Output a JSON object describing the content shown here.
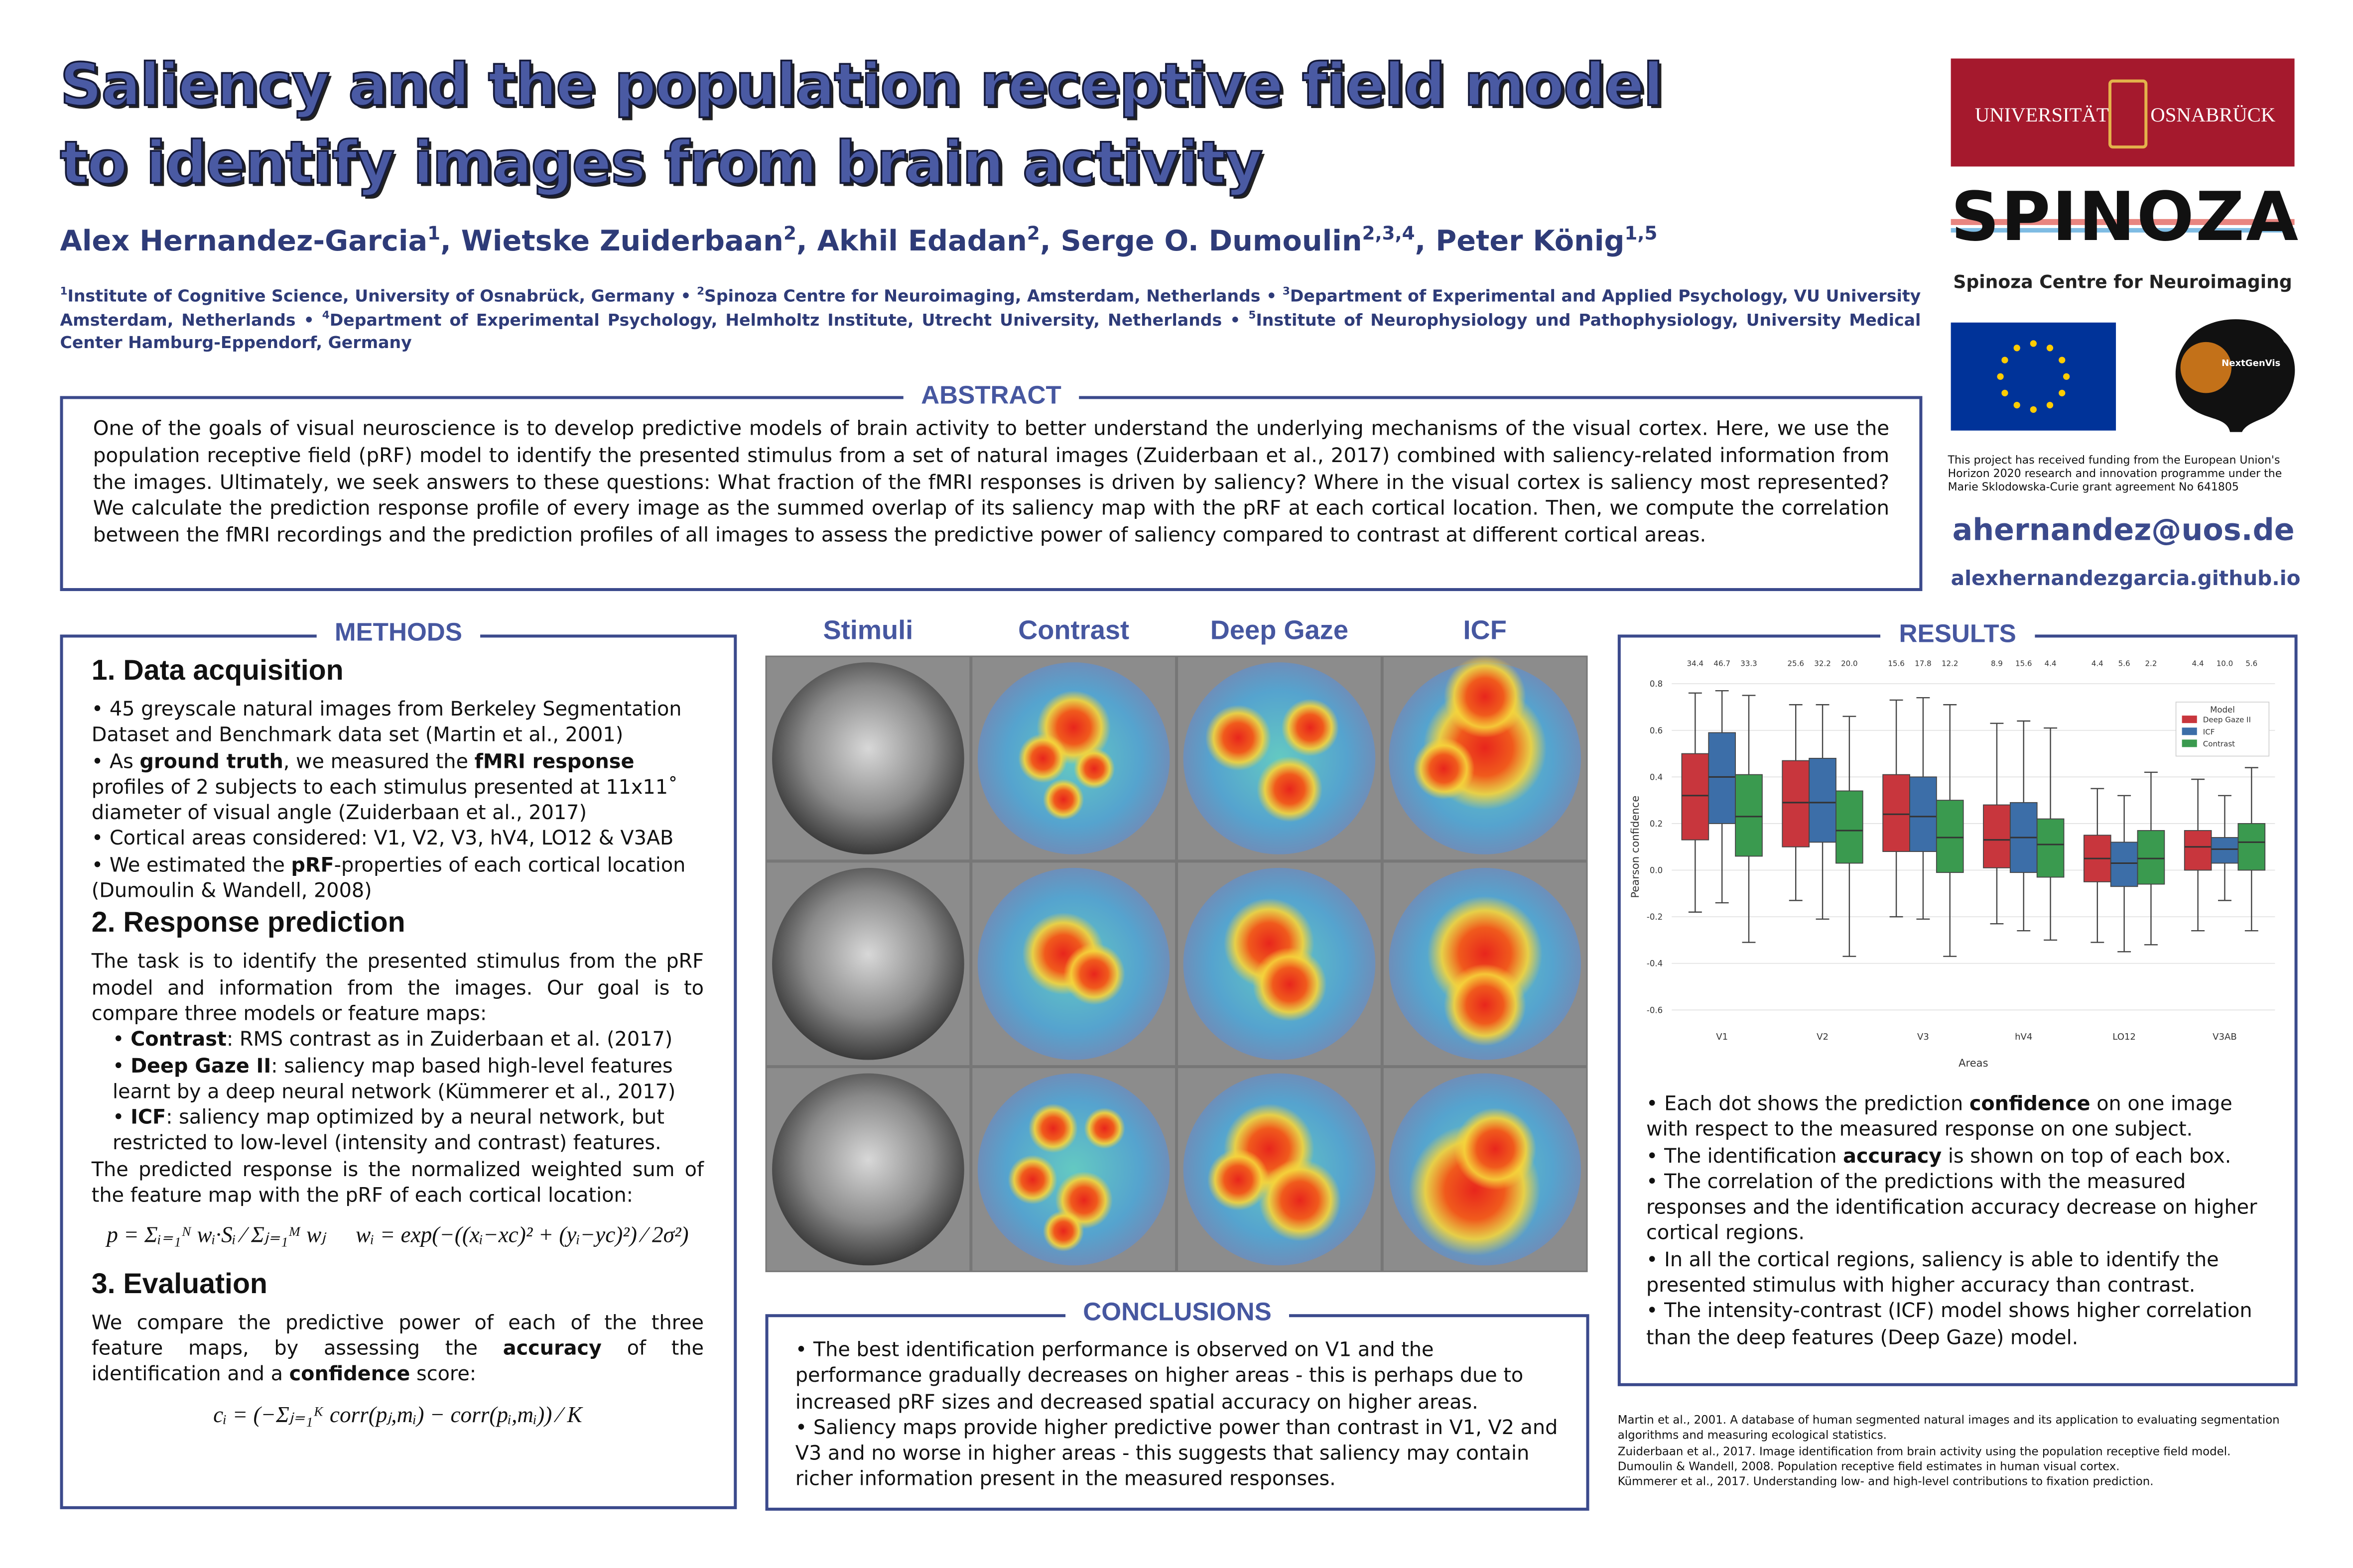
{
  "header": {
    "title_lines": [
      "Saliency and the population receptive field model",
      "to identify images from brain activity"
    ],
    "authors": [
      {
        "name": "Alex Hernandez-Garcia",
        "aff": "1"
      },
      {
        "name": "Wietske Zuiderbaan",
        "aff": "2"
      },
      {
        "name": "Akhil Edadan",
        "aff": "2"
      },
      {
        "name": "Serge O. Dumoulin",
        "aff": "2,3,4"
      },
      {
        "name": "Peter König",
        "aff": "1,5"
      }
    ],
    "affiliations": [
      {
        "num": "1",
        "text": "Institute of Cognitive Science, University of Osnabrück, Germany"
      },
      {
        "num": "2",
        "text": "Spinoza Centre for Neuroimaging,  Amsterdam, Netherlands"
      },
      {
        "num": "3",
        "text": "Department of Experimental and Applied Psychology, VU University Amsterdam, Netherlands"
      },
      {
        "num": "4",
        "text": "Department of Experimental Psychology, Helmholtz Institute, Utrecht University, Netherlands"
      },
      {
        "num": "5",
        "text": "Institute of Neurophysiology und Pathophysiology, University Medical Center Hamburg-Eppendorf, Germany"
      }
    ]
  },
  "sidebar": {
    "university": [
      "UNIVERSITÄT",
      "OSNABRÜCK"
    ],
    "spinoza": "SPINOZA",
    "spinoza_caption": "Spinoza Centre for Neuroimaging",
    "nextgenvis": "NextGenVis",
    "funding": "This project has received funding from the European Union's Horizon 2020 research and innovation programme under the Marie Sklodowska-Curie grant agreement No 641805",
    "email": "ahernandez@uos.de",
    "website": "alexhernandezgarcia.github.io"
  },
  "abstract": {
    "heading": "ABSTRACT",
    "text": "One of the goals of visual neuroscience is to develop predictive models of brain activity to better understand the underlying mechanisms of the visual cortex. Here, we use the population receptive field (pRF) model to identify the presented stimulus from a set of natural images (Zuiderbaan et al., 2017) combined with saliency-related information from the images. Ultimately, we seek answers to these questions: What fraction of the fMRI responses is driven by saliency? Where in the visual cortex is saliency most represented? We calculate the prediction response profile of every image as the summed overlap of its saliency map with the pRF at each cortical location. Then, we compute the correlation between the fMRI recordings and the prediction profiles of all images to assess the predictive power of saliency compared to contrast at different cortical areas."
  },
  "methods": {
    "heading": "METHODS",
    "sections": [
      {
        "title": "1. Data acquisition",
        "blocks": [
          {
            "bullets": [
              "45 greyscale natural images from Berkeley Segmentation Dataset and Benchmark data set (Martin et al., 2001)",
              [
                "As ",
                {
                  "bold": "ground truth"
                },
                ", we measured the ",
                {
                  "bold": "fMRI response"
                },
                " profiles of 2 subjects to each stimulus presented at 11x11˚ diameter of visual angle (Zuiderbaan et al., 2017)"
              ],
              "Cortical areas considered: V1, V2, V3, hV4, LO12 & V3AB",
              [
                "We estimated the ",
                {
                  "bold": "pRF"
                },
                "-properties of each cortical location (Dumoulin & Wandell, 2008)"
              ]
            ]
          }
        ]
      },
      {
        "title": "2. Response prediction",
        "blocks": [
          {
            "text": "The task is to identify the presented stimulus from the pRF model and information from the images. Our goal is to compare three models or feature maps:"
          },
          {
            "subbullets": [
              [
                {
                  "bold": "Contrast"
                },
                ": RMS contrast as in Zuiderbaan et al. (2017)"
              ],
              [
                {
                  "bold": "Deep Gaze II"
                },
                ": saliency map based high-level features learnt by a deep neural network (Kümmerer et al., 2017)"
              ],
              [
                {
                  "bold": "ICF"
                },
                ": saliency map optimized by a neural network, but restricted to low-level (intensity and contrast) features."
              ]
            ]
          },
          {
            "text": "The predicted response is the normalized weighted sum of the feature map with the pRF of each cortical location:"
          },
          {
            "equations": [
              "p = Σᵢ₌₁ᴺ wᵢ·Sᵢ ⁄ Σⱼ₌₁ᴹ wⱼ",
              "wᵢ = exp(−((xᵢ−xc)² + (yᵢ−yc)²) ⁄ 2σ²)"
            ]
          }
        ]
      },
      {
        "title": "3. Evaluation",
        "blocks": [
          {
            "text": [
              "We compare the predictive power of each of the three feature maps, by assessing the ",
              {
                "bold": "accuracy"
              },
              " of the identification and a ",
              {
                "bold": "confidence"
              },
              " score:"
            ]
          },
          {
            "equations": [
              "cᵢ = (−Σⱼ₌₁ᴷ corr(pⱼ,mᵢ) − corr(pᵢ,mᵢ)) ⁄ K"
            ]
          }
        ]
      }
    ]
  },
  "figure": {
    "columns": [
      "Stimuli",
      "Contrast",
      "Deep Gaze",
      "ICF"
    ]
  },
  "conclusions": {
    "heading": "CONCLUSIONS",
    "bullets": [
      "The best identification performance is observed on V1 and the performance gradually decreases on higher areas - this is perhaps due to increased pRF sizes and decreased spatial accuracy on higher areas.",
      "Saliency maps provide higher predictive power than contrast in V1, V2 and V3 and no worse in higher areas - this suggests that saliency may contain richer information present in the measured responses."
    ]
  },
  "results": {
    "heading": "RESULTS",
    "bullets": [
      [
        "Each dot shows the prediction ",
        {
          "bold": "confidence"
        },
        " on one image with respect to the measured response on one subject."
      ],
      [
        "The identification ",
        {
          "bold": "accuracy"
        },
        " is shown on top of each box."
      ],
      "The correlation of the predictions with the measured responses and the identification accuracy decrease on higher cortical regions.",
      "In all the cortical regions, saliency is able to identify the presented stimulus with higher accuracy than contrast.",
      "The intensity-contrast (ICF) model shows higher correlation than the deep features (Deep Gaze) model."
    ]
  },
  "references": [
    "Martin et al., 2001. A database of human segmented natural images and its application to evaluating segmentation algorithms and measuring ecological statistics.",
    "Zuiderbaan et al., 2017. Image identification from brain activity using the population receptive field model.",
    "Dumoulin & Wandell, 2008. Population receptive field estimates in human visual cortex.",
    "Kümmerer et al., 2017. Understanding low- and high-level contributions to fixation prediction."
  ],
  "chart_data": {
    "type": "box",
    "xlabel": "Areas",
    "ylabel": "Pearson confidence",
    "categories": [
      "V1",
      "V2",
      "V3",
      "hV4",
      "LO12",
      "V3AB"
    ],
    "legend_title": "Model",
    "legend": "upper right",
    "grid": true,
    "ylim": [
      -0.65,
      0.85
    ],
    "yticks": [
      -0.6,
      -0.4,
      -0.2,
      {
        "value": 0,
        "label": "0.0"
      },
      0.2,
      0.4,
      0.6,
      0.8
    ],
    "series": [
      {
        "name": "Deep Gaze II",
        "color": "#c8363d",
        "values": [
          34.4,
          25.6,
          15.6,
          8.9,
          4.4,
          4.4
        ],
        "value_labels": [
          "34.4",
          "25.6",
          "15.6",
          "8.9",
          "4.4",
          "4.4"
        ],
        "q1": [
          0.13,
          0.1,
          0.08,
          0.01,
          -0.05,
          0.0
        ],
        "median": [
          0.32,
          0.29,
          0.24,
          0.13,
          0.05,
          0.1
        ],
        "q3": [
          0.5,
          0.47,
          0.41,
          0.28,
          0.15,
          0.17
        ],
        "whisker_low": [
          -0.18,
          -0.13,
          -0.2,
          -0.23,
          -0.31,
          -0.26
        ],
        "whisker_high": [
          0.76,
          0.71,
          0.73,
          0.63,
          0.35,
          0.39
        ]
      },
      {
        "name": "ICF",
        "color": "#3c6ea8",
        "values": [
          46.7,
          32.2,
          17.8,
          15.6,
          5.6,
          10.0
        ],
        "value_labels": [
          "46.7",
          "32.2",
          "17.8",
          "15.6",
          "5.6",
          "10.0"
        ],
        "q1": [
          0.2,
          0.12,
          0.08,
          -0.01,
          -0.07,
          0.03
        ],
        "median": [
          0.4,
          0.29,
          0.23,
          0.14,
          0.03,
          0.09
        ],
        "q3": [
          0.59,
          0.48,
          0.4,
          0.29,
          0.12,
          0.14
        ],
        "whisker_low": [
          -0.14,
          -0.21,
          -0.21,
          -0.26,
          -0.35,
          -0.13
        ],
        "whisker_high": [
          0.77,
          0.71,
          0.74,
          0.64,
          0.32,
          0.32
        ]
      },
      {
        "name": "Contrast",
        "color": "#3a9a4f",
        "values": [
          33.3,
          20.0,
          12.2,
          4.4,
          2.2,
          5.6
        ],
        "value_labels": [
          "33.3",
          "20.0",
          "12.2",
          "4.4",
          "2.2",
          "5.6"
        ],
        "q1": [
          0.06,
          0.03,
          -0.01,
          -0.03,
          -0.06,
          0.0
        ],
        "median": [
          0.23,
          0.17,
          0.14,
          0.11,
          0.05,
          0.12
        ],
        "q3": [
          0.41,
          0.34,
          0.3,
          0.22,
          0.17,
          0.2
        ],
        "whisker_low": [
          -0.31,
          -0.37,
          -0.37,
          -0.3,
          -0.32,
          -0.26
        ],
        "whisker_high": [
          0.75,
          0.66,
          0.71,
          0.61,
          0.42,
          0.44
        ]
      }
    ]
  }
}
